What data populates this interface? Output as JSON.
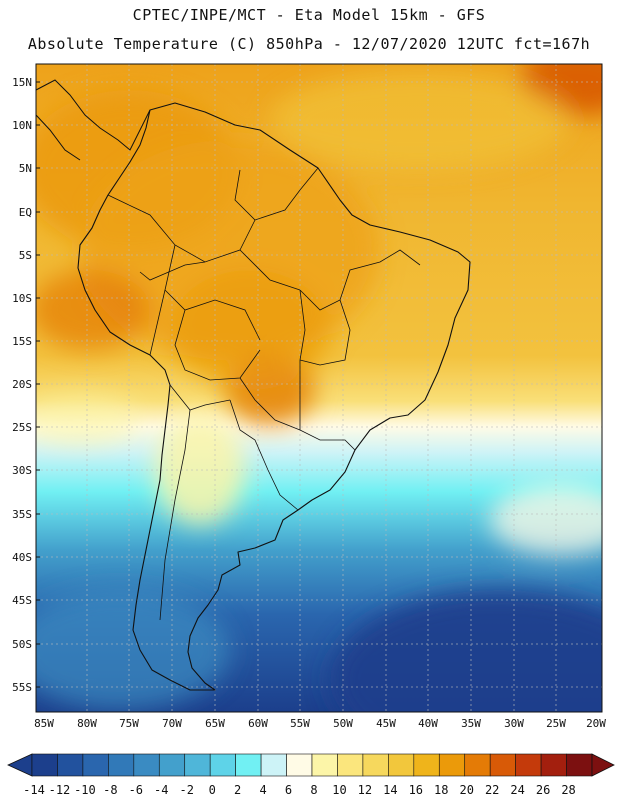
{
  "title_line1": "CPTEC/INPE/MCT -  Eta Model 15km - GFS",
  "title_line2": "Absolute Temperature (C) 850hPa - 12/07/2020 12UTC fct=167h",
  "map": {
    "lon_labels": [
      "85W",
      "80W",
      "75W",
      "70W",
      "65W",
      "60W",
      "55W",
      "50W",
      "45W",
      "40W",
      "35W",
      "30W",
      "25W",
      "20W"
    ],
    "lat_labels": [
      "15N",
      "10N",
      "5N",
      "EQ",
      "5S",
      "10S",
      "15S",
      "20S",
      "25S",
      "30S",
      "35S",
      "40S",
      "45S",
      "50S",
      "55S"
    ]
  },
  "colorbar": {
    "labels": [
      "-14",
      "-12",
      "-10",
      "-8",
      "-6",
      "-4",
      "-2",
      "0",
      "2",
      "4",
      "6",
      "8",
      "10",
      "12",
      "14",
      "16",
      "18",
      "20",
      "22",
      "24",
      "26",
      "28"
    ],
    "colors": [
      "#1c3f8c",
      "#22529e",
      "#2a66ae",
      "#3179b8",
      "#3a8bc2",
      "#43a0cc",
      "#4fb6d9",
      "#5ed3e8",
      "#71f0f3",
      "#cdf3f7",
      "#fffbe6",
      "#fcf5a8",
      "#fbe67d",
      "#f6d85d",
      "#f2c73c",
      "#efb41b",
      "#eb9a0a",
      "#e47b06",
      "#d85a07",
      "#c43a0b",
      "#a31f0e",
      "#7c1010"
    ],
    "left_end_color": "#1c3f8c",
    "right_end_color": "#7c1010"
  }
}
